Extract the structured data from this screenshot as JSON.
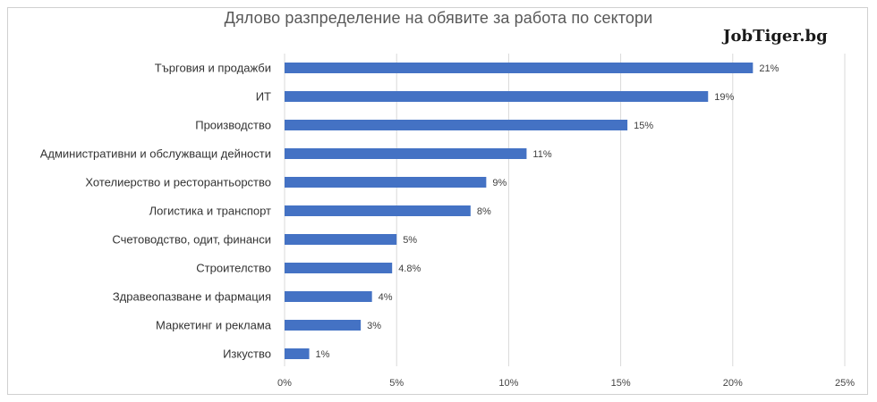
{
  "chart_data": {
    "type": "bar",
    "orientation": "horizontal",
    "title": "Дялово разпределение на обявите за работа по сектори",
    "watermark": "JobTiger.bg",
    "categories": [
      "Търговия и продажби",
      "ИТ",
      "Производство",
      "Административни и обслужващи дейности",
      "Хотелиерство и ресторантьорство",
      "Логистика и транспорт",
      "Счетоводство, одит, финанси",
      "Строителство",
      "Здравеопазване и фармация",
      "Маркетинг и реклама",
      "Изкуство"
    ],
    "values": [
      20.9,
      18.9,
      15.3,
      10.8,
      9.0,
      8.3,
      5.0,
      4.8,
      3.9,
      3.4,
      1.1
    ],
    "data_labels": [
      "21%",
      "19%",
      "15%",
      "11%",
      "9%",
      "8%",
      "5%",
      "4.8%",
      "4%",
      "3%",
      "1%"
    ],
    "xlim": [
      0,
      25
    ],
    "x_ticks": [
      0,
      5,
      10,
      15,
      20,
      25
    ],
    "x_tick_labels": [
      "0%",
      "5%",
      "10%",
      "15%",
      "20%",
      "25%"
    ],
    "xlabel": "",
    "ylabel": "",
    "grid": "vertical",
    "legend": "none",
    "bar_color": "#4472C4",
    "grid_color": "#d9d9d9"
  }
}
